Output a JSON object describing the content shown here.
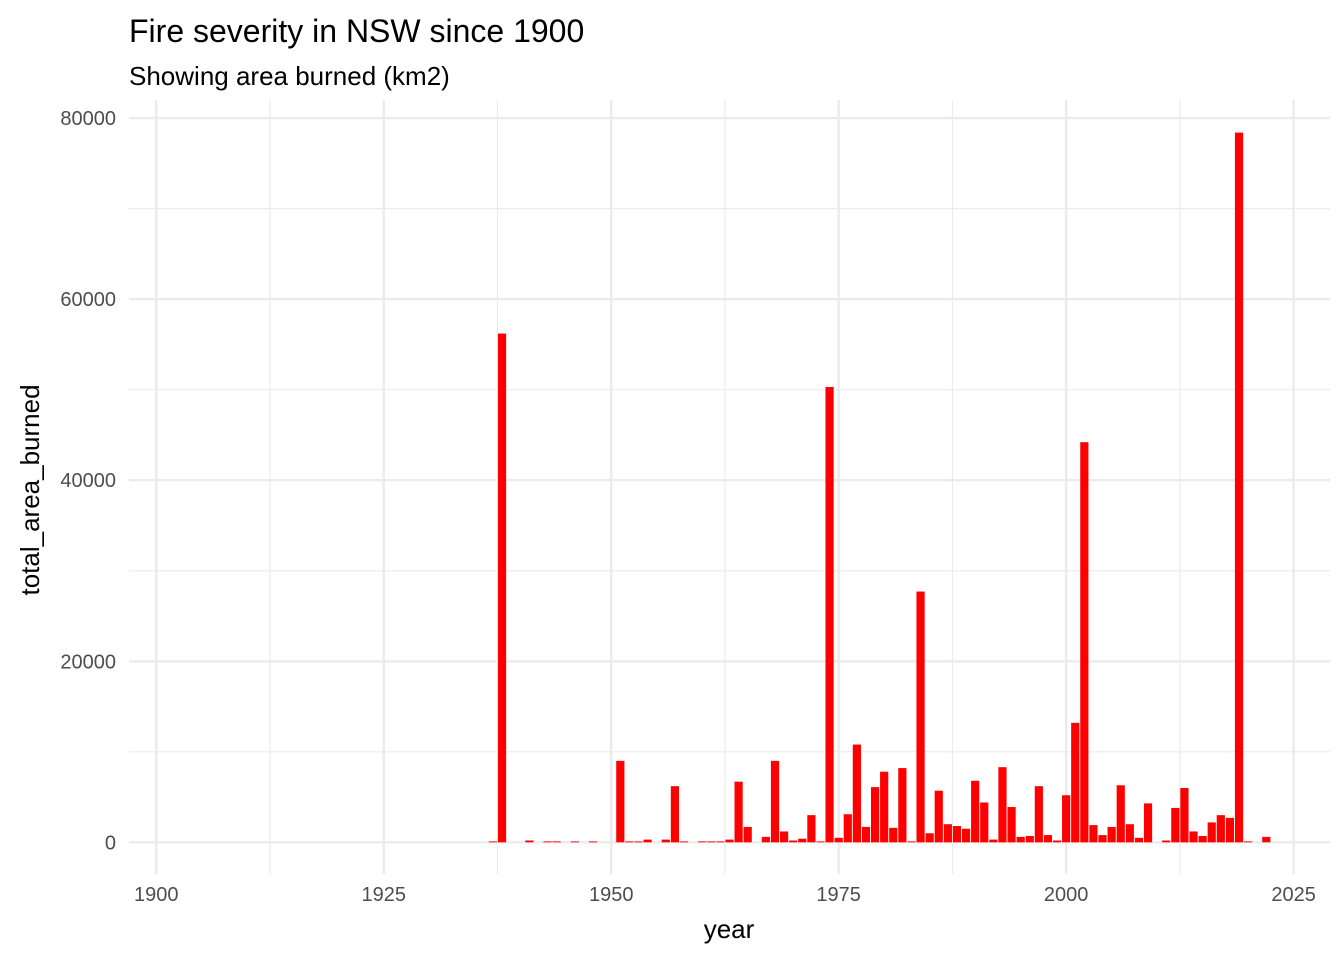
{
  "chart_data": {
    "type": "bar",
    "title": "Fire severity in NSW since 1900",
    "subtitle": "Showing area burned (km2)",
    "xlabel": "year",
    "ylabel": "total_area_burned",
    "xlim": [
      1897,
      2029
    ],
    "ylim": [
      -3500,
      82000
    ],
    "x_ticks": [
      1900,
      1925,
      1950,
      1975,
      2000,
      2025
    ],
    "y_ticks": [
      0,
      20000,
      40000,
      60000,
      80000
    ],
    "grid": true,
    "legend": "none",
    "bar_color": "#ff0000",
    "x": [
      1937,
      1938,
      1941,
      1943,
      1944,
      1946,
      1948,
      1951,
      1952,
      1953,
      1954,
      1956,
      1957,
      1958,
      1960,
      1961,
      1962,
      1963,
      1964,
      1965,
      1967,
      1968,
      1969,
      1970,
      1971,
      1972,
      1973,
      1974,
      1975,
      1976,
      1977,
      1978,
      1979,
      1980,
      1981,
      1982,
      1983,
      1984,
      1985,
      1986,
      1987,
      1988,
      1989,
      1990,
      1991,
      1992,
      1993,
      1994,
      1995,
      1996,
      1997,
      1998,
      1999,
      2000,
      2001,
      2002,
      2003,
      2004,
      2005,
      2006,
      2007,
      2008,
      2009,
      2011,
      2012,
      2013,
      2014,
      2015,
      2016,
      2017,
      2018,
      2019,
      2020,
      2022
    ],
    "values": [
      100,
      56200,
      200,
      100,
      100,
      100,
      100,
      9000,
      100,
      100,
      300,
      300,
      6200,
      100,
      100,
      100,
      100,
      300,
      6700,
      1700,
      600,
      9000,
      1200,
      200,
      400,
      3000,
      100,
      50300,
      500,
      3100,
      10800,
      1700,
      6100,
      7800,
      1600,
      8200,
      100,
      27700,
      1000,
      5700,
      2000,
      1800,
      1500,
      6800,
      4400,
      300,
      8300,
      3900,
      600,
      700,
      6200,
      800,
      200,
      5200,
      13200,
      44200,
      1900,
      800,
      1700,
      6300,
      2000,
      500,
      4300,
      200,
      3800,
      6000,
      1200,
      700,
      2200,
      3000,
      2700,
      78400,
      100,
      600
    ]
  }
}
